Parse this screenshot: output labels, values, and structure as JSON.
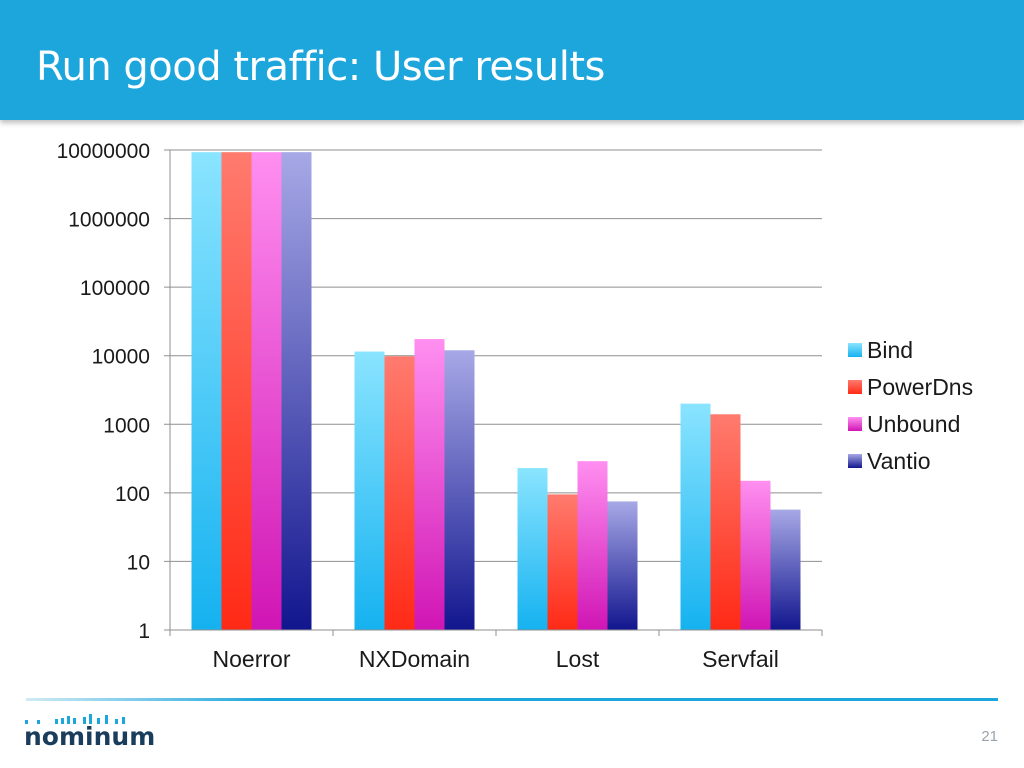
{
  "slide": {
    "title": "Run good traffic: User results",
    "page_number": "21",
    "logo_text": "nominum"
  },
  "colors": {
    "header": "#1da6dc",
    "Bind": [
      "#8ae4ff",
      "#15b2f0"
    ],
    "PowerDns": [
      "#ff7b6e",
      "#ff2a16"
    ],
    "Unbound": [
      "#ff8ff0",
      "#d015b4"
    ],
    "Vantio": [
      "#a7a8e6",
      "#12168e"
    ]
  },
  "chart_data": {
    "type": "bar",
    "y_scale": "log",
    "ylim": [
      1,
      10000000
    ],
    "y_ticks": [
      "1",
      "10",
      "100",
      "1000",
      "10000",
      "100000",
      "1000000",
      "10000000"
    ],
    "categories": [
      "Noerror",
      "NXDomain",
      "Lost",
      "Servfail"
    ],
    "series": [
      {
        "name": "Bind",
        "values": [
          9300000,
          11500,
          230,
          2000
        ]
      },
      {
        "name": "PowerDns",
        "values": [
          9300000,
          9800,
          95,
          1400
        ]
      },
      {
        "name": "Unbound",
        "values": [
          9300000,
          17500,
          290,
          150
        ]
      },
      {
        "name": "Vantio",
        "values": [
          9300000,
          12000,
          75,
          57
        ]
      }
    ],
    "legend": {
      "position": "right",
      "entries": [
        "Bind",
        "PowerDns",
        "Unbound",
        "Vantio"
      ]
    },
    "grid": true,
    "title": "",
    "xlabel": "",
    "ylabel": ""
  }
}
